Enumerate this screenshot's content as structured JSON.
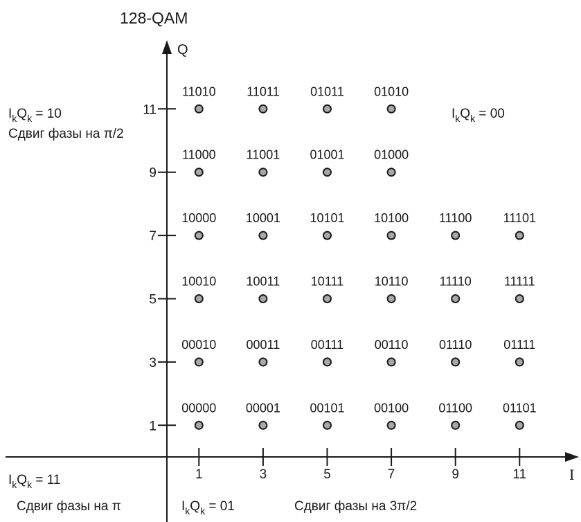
{
  "title": "128-QAM",
  "axes": {
    "q_label": "Q",
    "i_label": "I",
    "x_ticks": [
      "1",
      "3",
      "5",
      "7",
      "9",
      "11"
    ],
    "y_ticks": [
      "1",
      "3",
      "5",
      "7",
      "9",
      "11"
    ]
  },
  "quadrant_labels": {
    "q10": {
      "prefix": "I",
      "sub1": "k",
      "mid": "Q",
      "sub2": "k",
      "suffix": " = 10",
      "phase": "Сдвиг фазы на π/2"
    },
    "q00": {
      "prefix": "I",
      "sub1": "k",
      "mid": "Q",
      "sub2": "k",
      "suffix": " = 00"
    },
    "q11": {
      "prefix": "I",
      "sub1": "k",
      "mid": "Q",
      "sub2": "k",
      "suffix": " = 11",
      "phase": "Сдвиг фазы на π"
    },
    "q01": {
      "prefix": "I",
      "sub1": "k",
      "mid": "Q",
      "sub2": "k",
      "suffix": " = 01",
      "phase": "Сдвиг фазы на 3π/2"
    }
  },
  "points": [
    {
      "i": 1,
      "q": 11,
      "bits": "11010"
    },
    {
      "i": 3,
      "q": 11,
      "bits": "11011"
    },
    {
      "i": 5,
      "q": 11,
      "bits": "01011"
    },
    {
      "i": 7,
      "q": 11,
      "bits": "01010"
    },
    {
      "i": 1,
      "q": 9,
      "bits": "11000"
    },
    {
      "i": 3,
      "q": 9,
      "bits": "11001"
    },
    {
      "i": 5,
      "q": 9,
      "bits": "01001"
    },
    {
      "i": 7,
      "q": 9,
      "bits": "01000"
    },
    {
      "i": 1,
      "q": 7,
      "bits": "10000"
    },
    {
      "i": 3,
      "q": 7,
      "bits": "10001"
    },
    {
      "i": 5,
      "q": 7,
      "bits": "10101"
    },
    {
      "i": 7,
      "q": 7,
      "bits": "10100"
    },
    {
      "i": 9,
      "q": 7,
      "bits": "11100"
    },
    {
      "i": 11,
      "q": 7,
      "bits": "11101"
    },
    {
      "i": 1,
      "q": 5,
      "bits": "10010"
    },
    {
      "i": 3,
      "q": 5,
      "bits": "10011"
    },
    {
      "i": 5,
      "q": 5,
      "bits": "10111"
    },
    {
      "i": 7,
      "q": 5,
      "bits": "10110"
    },
    {
      "i": 9,
      "q": 5,
      "bits": "11110"
    },
    {
      "i": 11,
      "q": 5,
      "bits": "11111"
    },
    {
      "i": 1,
      "q": 3,
      "bits": "00010"
    },
    {
      "i": 3,
      "q": 3,
      "bits": "00011"
    },
    {
      "i": 5,
      "q": 3,
      "bits": "00111"
    },
    {
      "i": 7,
      "q": 3,
      "bits": "00110"
    },
    {
      "i": 9,
      "q": 3,
      "bits": "01110"
    },
    {
      "i": 11,
      "q": 3,
      "bits": "01111"
    },
    {
      "i": 1,
      "q": 1,
      "bits": "00000"
    },
    {
      "i": 3,
      "q": 1,
      "bits": "00001"
    },
    {
      "i": 5,
      "q": 1,
      "bits": "00101"
    },
    {
      "i": 7,
      "q": 1,
      "bits": "00100"
    },
    {
      "i": 9,
      "q": 1,
      "bits": "01100"
    },
    {
      "i": 11,
      "q": 1,
      "bits": "01101"
    }
  ]
}
